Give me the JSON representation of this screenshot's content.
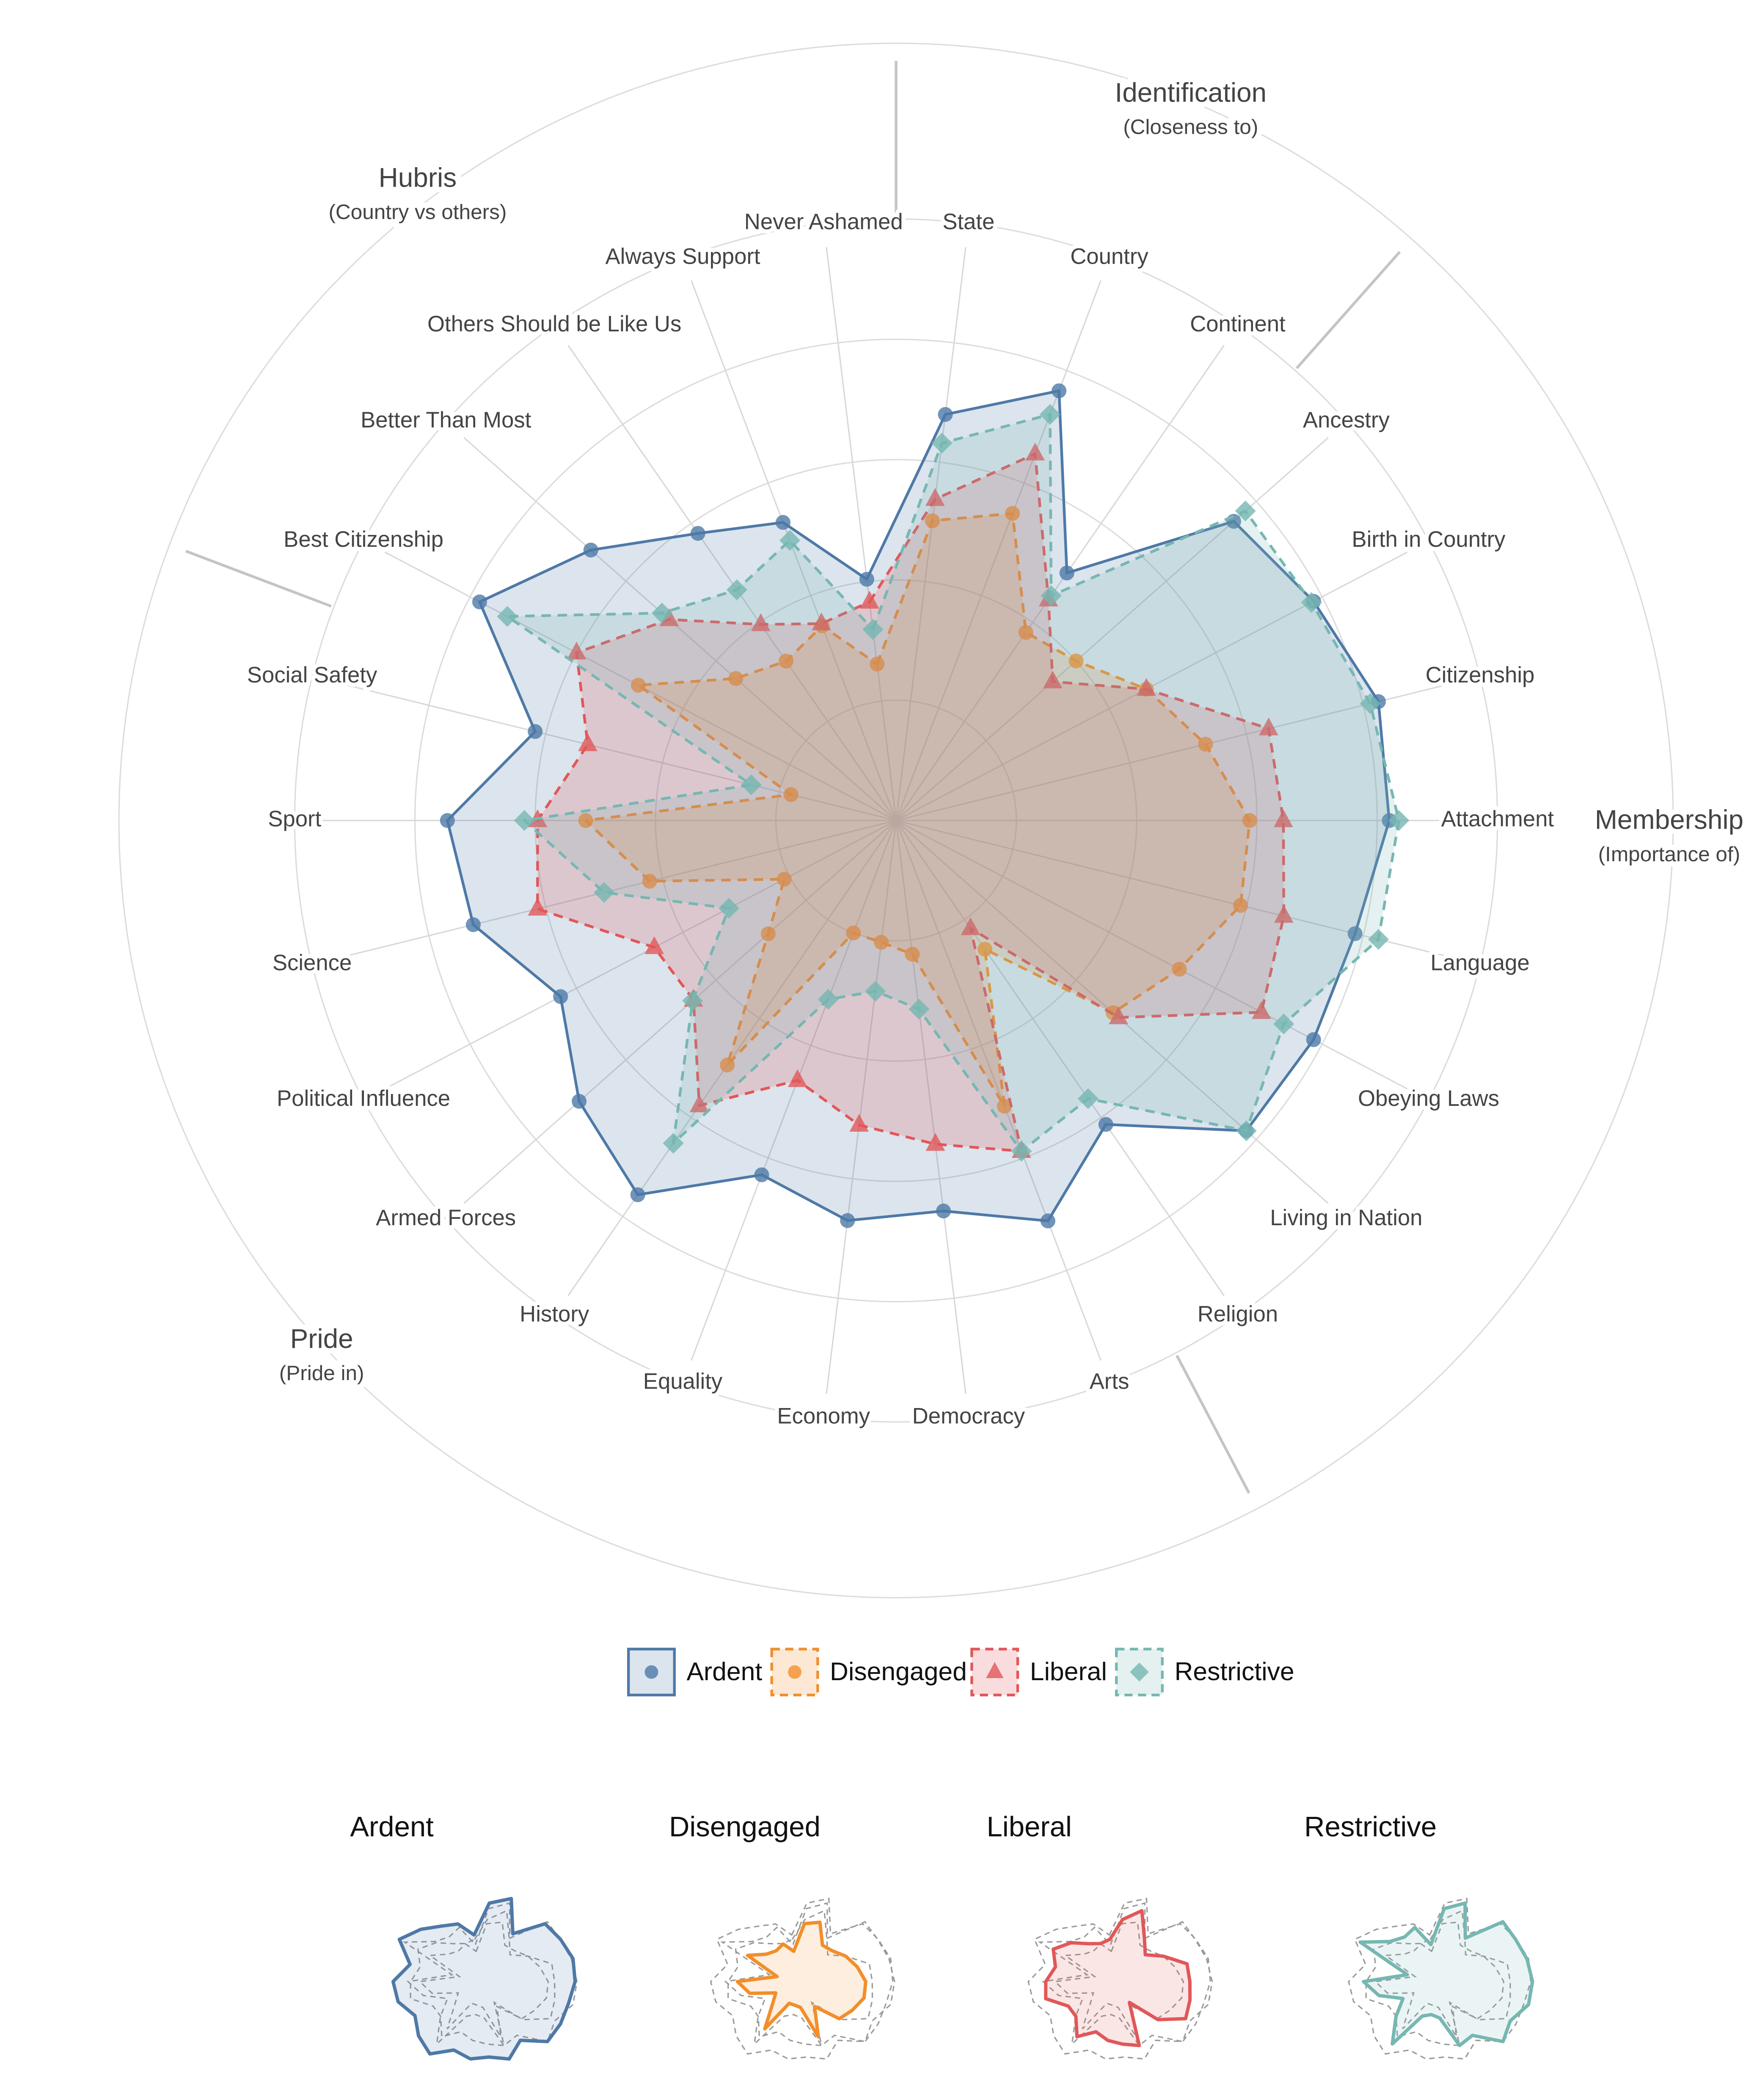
{
  "chart_data": {
    "type": "radar",
    "axes": [
      "Never Ashamed",
      "State",
      "Country",
      "Continent",
      "Ancestry",
      "Birth in Country",
      "Citizenship",
      "Attachment",
      "Language",
      "Obeying Laws",
      "Living in Nation",
      "Religion",
      "Arts",
      "Democracy",
      "Economy",
      "Equality",
      "History",
      "Armed Forces",
      "Political Influence",
      "Science",
      "Sport",
      "Social Safety",
      "Best Citizenship",
      "Better Than Most",
      "Others Should be Like Us",
      "Always Support"
    ],
    "groups": [
      {
        "title": "Identification",
        "subtitle": "(Closeness to)",
        "axes": [
          "State",
          "Country",
          "Continent"
        ]
      },
      {
        "title": "Membership",
        "subtitle": "(Importance of)",
        "axes": [
          "Ancestry",
          "Birth in Country",
          "Citizenship",
          "Attachment",
          "Language",
          "Obeying Laws",
          "Living in Nation",
          "Religion"
        ]
      },
      {
        "title": "Pride",
        "subtitle": "(Pride in)",
        "axes": [
          "Arts",
          "Democracy",
          "Economy",
          "Equality",
          "History",
          "Armed Forces",
          "Political Influence",
          "Science",
          "Sport",
          "Social Safety"
        ]
      },
      {
        "title": "Hubris",
        "subtitle": "(Country vs others)",
        "axes": [
          "Best Citizenship",
          "Better Than Most",
          "Others Should be Like Us",
          "Always Support",
          "Never Ashamed"
        ]
      }
    ],
    "rlim": [
      0,
      5
    ],
    "grid": true,
    "legend": "bottom",
    "series": [
      {
        "name": "Ardent",
        "color": "#4e79a7",
        "marker": "circle",
        "line": "solid",
        "values": [
          2.02,
          3.4,
          3.82,
          2.5,
          3.75,
          3.92,
          4.13,
          4.1,
          3.93,
          3.92,
          3.89,
          3.07,
          3.56,
          3.27,
          3.35,
          3.15,
          3.78,
          3.52,
          3.15,
          3.62,
          3.73,
          3.09,
          3.91,
          3.39,
          2.9,
          2.65
        ]
      },
      {
        "name": "Disengaged",
        "color": "#f28e2b",
        "marker": "circle",
        "line": "dashed",
        "values": [
          1.31,
          2.51,
          2.73,
          1.9,
          2.0,
          2.35,
          2.65,
          2.94,
          2.95,
          2.66,
          2.41,
          1.3,
          2.54,
          1.12,
          1.02,
          1.0,
          2.47,
          1.42,
          1.05,
          2.11,
          2.58,
          0.9,
          2.42,
          1.78,
          1.61,
          1.73
        ]
      },
      {
        "name": "Liberal",
        "color": "#e15759",
        "marker": "triangle",
        "line": "dashed",
        "values": [
          1.83,
          2.69,
          3.26,
          2.23,
          1.74,
          2.35,
          3.19,
          3.22,
          3.32,
          3.43,
          2.47,
          1.09,
          2.94,
          2.71,
          2.55,
          2.31,
          2.88,
          2.25,
          2.27,
          3.07,
          2.98,
          2.64,
          3.0,
          2.52,
          1.98,
          1.75
        ]
      },
      {
        "name": "Restrictive",
        "color": "#76b7b2",
        "marker": "diamond",
        "line": "dashed",
        "values": [
          1.6,
          3.16,
          3.61,
          2.27,
          3.88,
          3.9,
          4.06,
          4.18,
          4.13,
          3.64,
          3.89,
          2.81,
          2.94,
          1.58,
          1.43,
          1.59,
          3.26,
          2.26,
          1.57,
          2.5,
          3.09,
          1.24,
          3.65,
          2.6,
          2.33,
          2.49
        ]
      }
    ]
  }
}
